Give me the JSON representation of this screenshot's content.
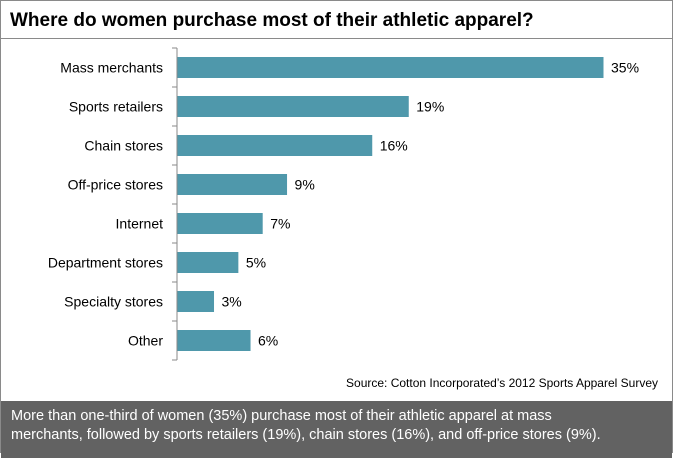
{
  "chart_data": {
    "type": "bar",
    "orientation": "horizontal",
    "title": "Where do women purchase most of their athletic apparel?",
    "categories": [
      "Mass merchants",
      "Sports retailers",
      "Chain stores",
      "Off-price stores",
      "Internet",
      "Department stores",
      "Specialty stores",
      "Other"
    ],
    "values": [
      35,
      19,
      16,
      9,
      7,
      5,
      3,
      6
    ],
    "value_labels": [
      "35%",
      "19%",
      "16%",
      "9%",
      "7%",
      "5%",
      "3%",
      "6%"
    ],
    "xlim": [
      0,
      35
    ],
    "grid": false,
    "legend": "none",
    "bar_color": "#4f98ab"
  },
  "source": "Source: Cotton Incorporated’s 2012 Sports Apparel Survey",
  "caption": {
    "line1": "More than one-third of women (35%) purchase most of their athletic apparel at mass",
    "line2": "merchants, followed by sports retailers (19%), chain stores (16%), and off-price stores (9%)."
  }
}
